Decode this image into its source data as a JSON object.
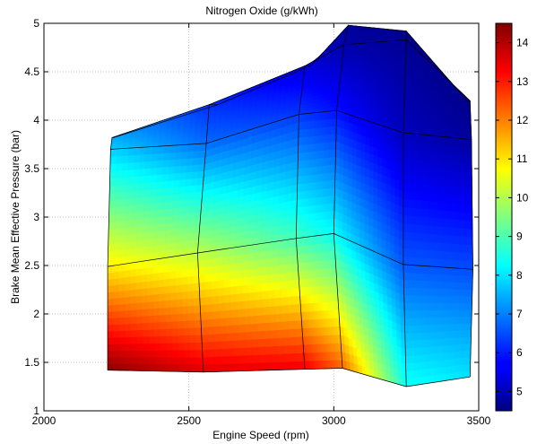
{
  "chart_data": {
    "type": "heatmap",
    "title": "Nitrogen Oxide (g/kWh)",
    "xlabel": "Engine Speed (rpm)",
    "ylabel": "Brake Mean Effective Pressure (bar)",
    "xlim": [
      2000,
      3500
    ],
    "ylim": [
      1,
      5
    ],
    "x_ticks": [
      "2000",
      "2500",
      "3000",
      "3500"
    ],
    "y_ticks": [
      "1",
      "1.5",
      "2",
      "2.5",
      "3",
      "3.5",
      "4",
      "4.5",
      "5"
    ],
    "x_tick_values": [
      2000,
      2500,
      3000,
      3500
    ],
    "y_tick_values": [
      1,
      1.5,
      2,
      2.5,
      3,
      3.5,
      4,
      4.5,
      5
    ],
    "grid": true,
    "colorbar": {
      "range": [
        4.5,
        14.5
      ],
      "ticks": [
        "5",
        "6",
        "7",
        "8",
        "9",
        "10",
        "11",
        "12",
        "13",
        "14"
      ],
      "tick_values": [
        5,
        6,
        7,
        8,
        9,
        10,
        11,
        12,
        13,
        14
      ],
      "colormap": "jet"
    },
    "mesh": {
      "grid_x": [
        [
          2220,
          2550,
          2900,
          3030,
          3250,
          3470
        ],
        [
          2220,
          2530,
          2870,
          3000,
          3240,
          3480
        ],
        [
          2230,
          2560,
          2880,
          3010,
          3240,
          3475
        ],
        [
          2235,
          2570,
          2900,
          3035,
          3250,
          3470
        ],
        [
          2240,
          2600,
          2920,
          3050,
          3250,
          3460
        ]
      ],
      "grid_y": [
        [
          1.42,
          1.4,
          1.43,
          1.44,
          1.25,
          1.35
        ],
        [
          2.49,
          2.63,
          2.78,
          2.83,
          2.51,
          2.46
        ],
        [
          3.7,
          3.76,
          4.06,
          4.1,
          3.87,
          3.8
        ],
        [
          3.82,
          4.16,
          4.56,
          4.78,
          4.83,
          4.2
        ],
        [
          3.82,
          4.16,
          4.56,
          4.98,
          4.92,
          4.2
        ]
      ],
      "z": [
        [
          14.4,
          13.6,
          13.4,
          12.3,
          8.4,
          8.0
        ],
        [
          10.9,
          10.1,
          8.9,
          8.3,
          6.6,
          6.5
        ],
        [
          7.8,
          6.8,
          6.3,
          5.9,
          5.1,
          4.8
        ],
        [
          7.4,
          6.2,
          5.4,
          4.9,
          4.7,
          4.6
        ],
        [
          7.4,
          6.2,
          5.4,
          4.8,
          4.6,
          4.6
        ]
      ]
    }
  }
}
